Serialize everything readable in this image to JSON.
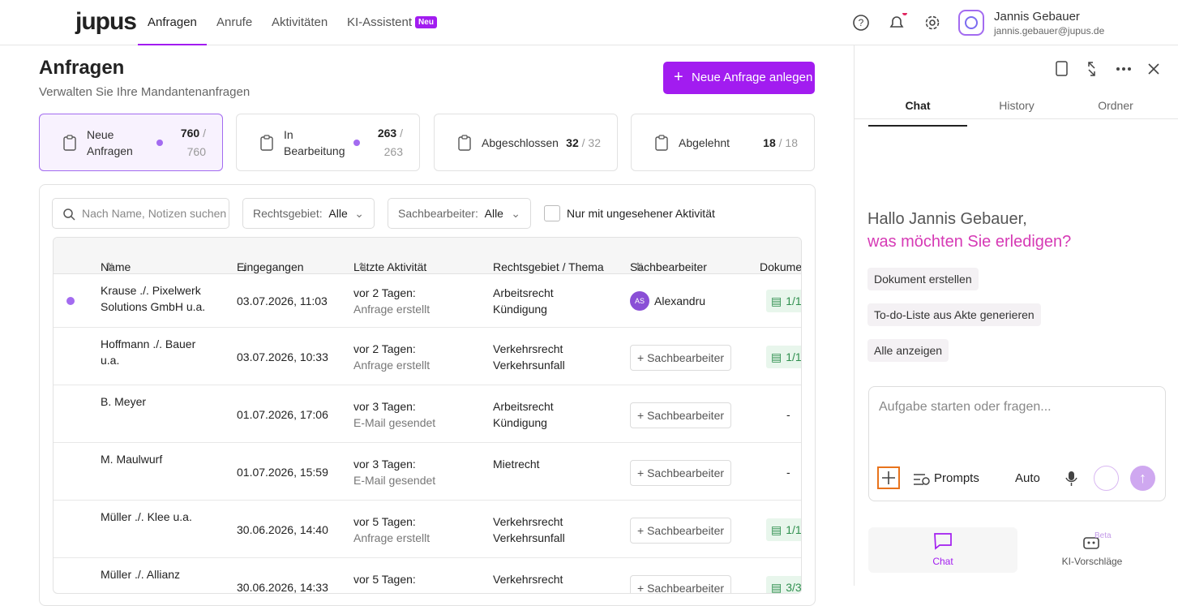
{
  "header": {
    "logo": "jupus",
    "nav": [
      "Anfragen",
      "Anrufe",
      "Aktivitäten",
      "KI-Assistent"
    ],
    "badge": "Neu",
    "user_name": "Jannis Gebauer",
    "user_email": "jannis.gebauer@jupus.de"
  },
  "page": {
    "title": "Anfragen",
    "subtitle": "Verwalten Sie Ihre Mandantenanfragen",
    "new_button": "Neue Anfrage anlegen"
  },
  "stats": [
    {
      "label": "Neue Anfragen",
      "count": "760",
      "total": "/ 760"
    },
    {
      "label": "In Bearbeitung",
      "count": "263",
      "total": "/ 263"
    },
    {
      "label": "Abgeschlossen",
      "count": "32",
      "total": "/ 32"
    },
    {
      "label": "Abgelehnt",
      "count": "18",
      "total": "/ 18"
    }
  ],
  "filters": {
    "search_placeholder": "Nach Name, Notizen suchen",
    "area_label": "Rechtsgebiet:",
    "area_value": "Alle",
    "assignee_label": "Sachbearbeiter:",
    "assignee_value": "Alle",
    "unseen_only": "Nur mit ungesehener Aktivität"
  },
  "table": {
    "columns": [
      "Name",
      "Eingegangen",
      "Letzte Aktivität",
      "Rechtsgebiet / Thema",
      "Sachbearbeiter",
      "Dokumente"
    ],
    "add_assignee": "+ Sachbearbeiter",
    "rows": [
      {
        "unseen": true,
        "name": "Krause ./. Pixelwerk Solutions GmbH u.a.",
        "received": "03.07.2026, 11:03",
        "activity_time": "vor 2 Tagen:",
        "activity_text": "Anfrage erstellt",
        "area": "Arbeitsrecht",
        "topic": "Kündigung",
        "assignee": {
          "initials": "AS",
          "name": "Alexandru"
        },
        "docs": "1/1"
      },
      {
        "name": "Hoffmann ./. Bauer u.a.",
        "received": "03.07.2026, 10:33",
        "activity_time": "vor 2 Tagen:",
        "activity_text": "Anfrage erstellt",
        "area": "Verkehrsrecht",
        "topic": "Verkehrsunfall",
        "docs": "1/1"
      },
      {
        "name": "B. Meyer",
        "received": "01.07.2026, 17:06",
        "activity_time": "vor 3 Tagen:",
        "activity_text": "E-Mail gesendet",
        "area": "Arbeitsrecht",
        "topic": "Kündigung",
        "docs": "-"
      },
      {
        "name": "M. Maulwurf",
        "received": "01.07.2026, 15:59",
        "activity_time": "vor 3 Tagen:",
        "activity_text": "E-Mail gesendet",
        "area": "Mietrecht",
        "docs": "-"
      },
      {
        "name": "Müller ./. Klee u.a.",
        "received": "30.06.2026, 14:40",
        "activity_time": "vor 5 Tagen:",
        "activity_text": "Anfrage erstellt",
        "area": "Verkehrsrecht",
        "topic": "Verkehrsunfall",
        "docs": "1/1"
      },
      {
        "name": "Müller ./. Allianz",
        "received": "30.06.2026, 14:33",
        "activity_time": "vor 5 Tagen:",
        "area": "Verkehrsrecht",
        "docs": "3/3"
      }
    ]
  },
  "chat": {
    "tabs": [
      "Chat",
      "History",
      "Ordner"
    ],
    "greeting": "Hallo Jannis Gebauer,",
    "question": "was möchten Sie erledigen?",
    "suggestions": [
      "Dokument erstellen",
      "To-do-Liste aus Akte generieren",
      "Alle anzeigen"
    ],
    "input_placeholder": "Aufgabe starten oder fragen...",
    "prompts": "Prompts",
    "mode": "Auto",
    "bottom_tabs": [
      "Chat",
      "KI-Vorschläge"
    ],
    "beta": "Beta"
  }
}
